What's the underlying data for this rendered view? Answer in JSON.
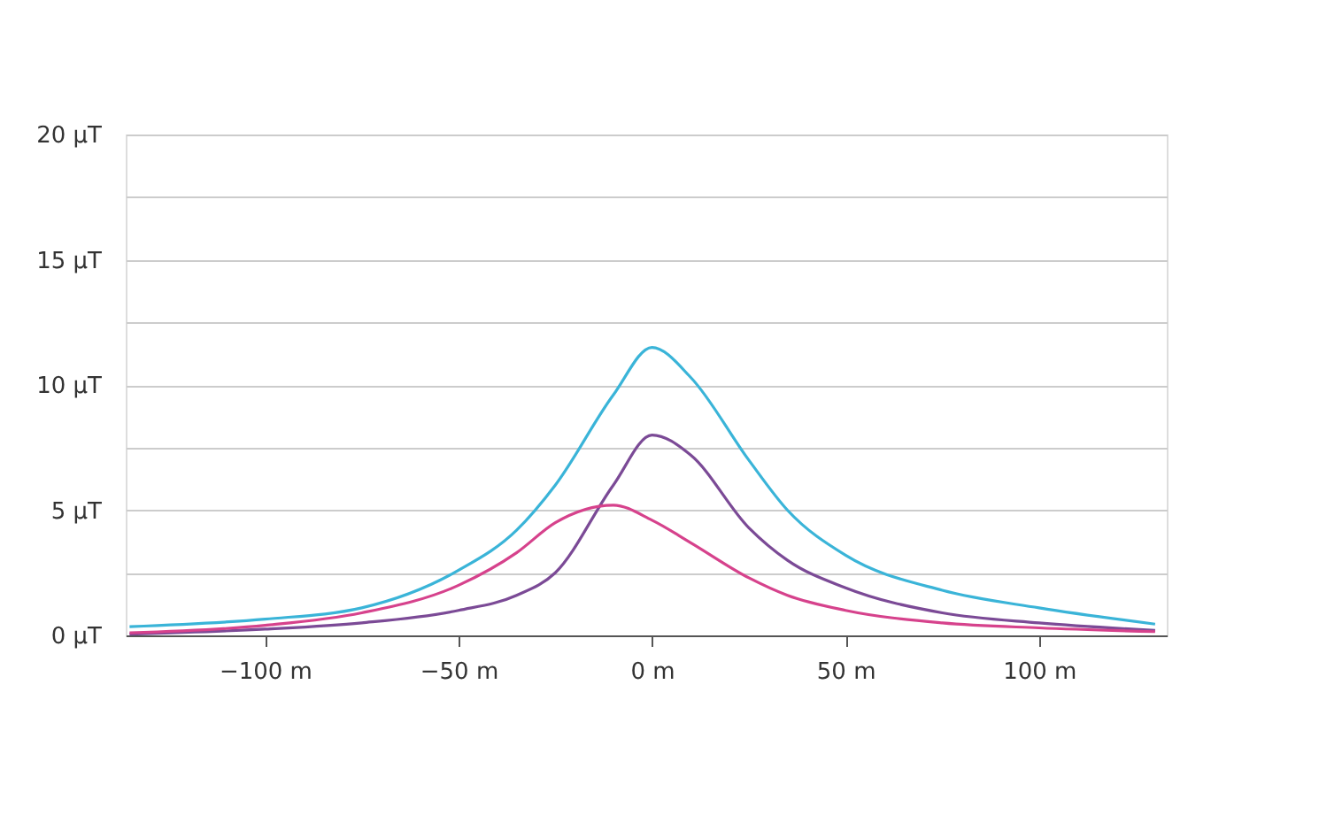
{
  "chart_data": {
    "type": "line",
    "x": [
      -135,
      -100,
      -75,
      -50,
      -35,
      -25,
      -10,
      0,
      10,
      25,
      35,
      50,
      75,
      100,
      130
    ],
    "series": [
      {
        "color": "#3ab4d8",
        "values": [
          0.35,
          0.65,
          1.1,
          2.6,
          4.2,
          6.0,
          9.6,
          11.5,
          10.3,
          7.0,
          5.0,
          3.2,
          1.8,
          1.1,
          0.45
        ]
      },
      {
        "color": "#7b4a96",
        "values": [
          0.05,
          0.25,
          0.5,
          1.0,
          1.6,
          2.5,
          6.0,
          8.0,
          7.2,
          4.3,
          3.0,
          1.9,
          0.9,
          0.5,
          0.2
        ]
      },
      {
        "color": "#d6428c",
        "values": [
          0.1,
          0.4,
          0.9,
          2.0,
          3.3,
          4.5,
          5.2,
          4.6,
          3.7,
          2.3,
          1.6,
          1.0,
          0.5,
          0.3,
          0.15
        ]
      }
    ],
    "xlim": [
      -136,
      133
    ],
    "xticks": [
      {
        "value": -100,
        "label": "−100 m"
      },
      {
        "value": -50,
        "label": "−50 m"
      },
      {
        "value": 0,
        "label": "0 m"
      },
      {
        "value": 50,
        "label": "50 m"
      },
      {
        "value": 100,
        "label": "100 m"
      }
    ],
    "ylim": [
      0,
      20
    ],
    "yticks": [
      {
        "value": 0,
        "label": "0 µT"
      },
      {
        "value": 2.5,
        "label": null
      },
      {
        "value": 5,
        "label": "5 µT"
      },
      {
        "value": 7.5,
        "label": null
      },
      {
        "value": 10,
        "label": "10 µT"
      },
      {
        "value": 12.5,
        "label": null
      },
      {
        "value": 15,
        "label": "15 µT"
      },
      {
        "value": 17.5,
        "label": null
      },
      {
        "value": 20,
        "label": "20 µT"
      }
    ],
    "grid": "y",
    "legend": false,
    "marker": "none",
    "line_style": "solid"
  }
}
